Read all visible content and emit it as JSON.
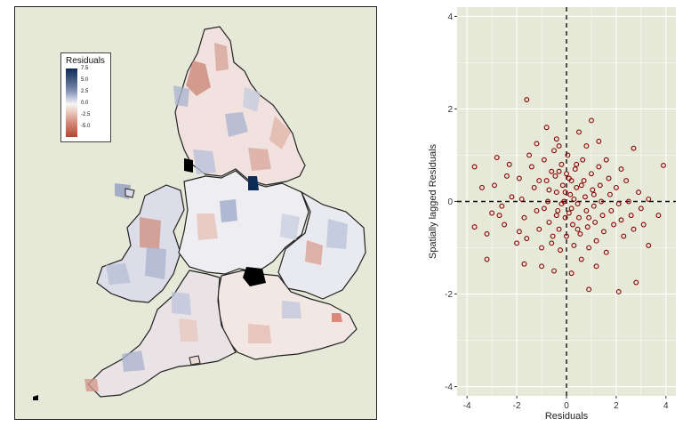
{
  "map": {
    "legend": {
      "title": "Residuals",
      "labels": [
        "7.5",
        "5.0",
        "2.5",
        "0.0",
        "-2.5",
        "-5.0"
      ],
      "colors": {
        "high": "#0b2a55",
        "mid": "#f6f4f2",
        "low": "#b54530"
      }
    }
  },
  "chart_data": {
    "type": "scatter",
    "xlabel": "Residuals",
    "ylabel": "Spatially lagged Residuals",
    "xlim": [
      -4.4,
      4.4
    ],
    "ylim": [
      -4.2,
      4.2
    ],
    "xticks": [
      "-4",
      "-2",
      "0",
      "2",
      "4"
    ],
    "yticks": [
      "-4",
      "-2",
      "0",
      "2",
      "4"
    ],
    "xtick_values": [
      -4,
      -2,
      0,
      2,
      4
    ],
    "ytick_values": [
      -4,
      -2,
      0,
      2,
      4
    ],
    "grid": true,
    "reference_lines": {
      "x": 0,
      "y": 0,
      "style": "dashed"
    },
    "point_color": "#8b0000",
    "points": [
      [
        -1.6,
        2.2
      ],
      [
        1.0,
        1.75
      ],
      [
        -0.8,
        1.6
      ],
      [
        -3.7,
        0.75
      ],
      [
        3.9,
        0.78
      ],
      [
        3.7,
        -0.3
      ],
      [
        3.3,
        -0.95
      ],
      [
        2.8,
        -1.75
      ],
      [
        2.1,
        -1.95
      ],
      [
        0.9,
        -1.9
      ],
      [
        -0.5,
        -1.5
      ],
      [
        -1.7,
        -1.35
      ],
      [
        -3.2,
        -1.25
      ],
      [
        -3.7,
        -0.55
      ],
      [
        -2.8,
        0.95
      ],
      [
        -2.3,
        0.8
      ],
      [
        1.3,
        1.3
      ],
      [
        0.5,
        1.5
      ],
      [
        -0.4,
        1.35
      ],
      [
        -1.2,
        1.25
      ],
      [
        2.7,
        1.15
      ],
      [
        -3.4,
        0.3
      ],
      [
        -2.9,
        0.35
      ],
      [
        -2.6,
        -0.1
      ],
      [
        -3.0,
        -0.25
      ],
      [
        -3.2,
        -0.7
      ],
      [
        -2.5,
        -0.5
      ],
      [
        -2.2,
        0.1
      ],
      [
        -1.9,
        0.5
      ],
      [
        -1.8,
        0.05
      ],
      [
        -1.7,
        -0.35
      ],
      [
        -1.6,
        -0.8
      ],
      [
        -1.4,
        0.75
      ],
      [
        -1.3,
        0.3
      ],
      [
        -1.2,
        -0.2
      ],
      [
        -1.1,
        -0.6
      ],
      [
        -1.0,
        -1.0
      ],
      [
        -0.9,
        0.9
      ],
      [
        -0.8,
        0.45
      ],
      [
        -0.75,
        0.0
      ],
      [
        -0.7,
        -0.45
      ],
      [
        -0.6,
        -0.9
      ],
      [
        -0.5,
        1.1
      ],
      [
        -0.45,
        0.55
      ],
      [
        -0.4,
        0.2
      ],
      [
        -0.35,
        -0.2
      ],
      [
        -0.3,
        -0.6
      ],
      [
        -0.25,
        -1.05
      ],
      [
        -0.2,
        0.8
      ],
      [
        -0.15,
        0.35
      ],
      [
        -0.1,
        0.0
      ],
      [
        -0.05,
        -0.35
      ],
      [
        0.0,
        -0.75
      ],
      [
        0.05,
        1.0
      ],
      [
        0.1,
        0.5
      ],
      [
        0.15,
        0.15
      ],
      [
        0.2,
        -0.15
      ],
      [
        0.25,
        -0.5
      ],
      [
        0.3,
        -0.95
      ],
      [
        0.35,
        0.7
      ],
      [
        0.4,
        0.3
      ],
      [
        0.45,
        -0.05
      ],
      [
        0.5,
        -0.35
      ],
      [
        0.55,
        -0.7
      ],
      [
        0.6,
        -1.25
      ],
      [
        0.65,
        0.9
      ],
      [
        0.7,
        0.45
      ],
      [
        0.75,
        0.1
      ],
      [
        0.8,
        -0.2
      ],
      [
        0.85,
        -0.55
      ],
      [
        0.9,
        -1.0
      ],
      [
        1.0,
        0.6
      ],
      [
        1.05,
        0.25
      ],
      [
        1.1,
        -0.1
      ],
      [
        1.15,
        -0.45
      ],
      [
        1.2,
        -0.85
      ],
      [
        1.3,
        0.75
      ],
      [
        1.35,
        0.35
      ],
      [
        1.4,
        0.0
      ],
      [
        1.45,
        -0.3
      ],
      [
        1.5,
        -0.65
      ],
      [
        1.6,
        -1.1
      ],
      [
        1.7,
        0.5
      ],
      [
        1.75,
        0.15
      ],
      [
        1.8,
        -0.2
      ],
      [
        1.9,
        -0.5
      ],
      [
        2.0,
        0.3
      ],
      [
        2.1,
        -0.05
      ],
      [
        2.2,
        -0.4
      ],
      [
        2.3,
        -0.75
      ],
      [
        2.4,
        0.45
      ],
      [
        2.5,
        0.0
      ],
      [
        2.6,
        -0.3
      ],
      [
        2.7,
        -0.6
      ],
      [
        2.9,
        0.2
      ],
      [
        3.0,
        -0.15
      ],
      [
        3.1,
        -0.5
      ],
      [
        3.3,
        0.05
      ],
      [
        -2.0,
        -0.9
      ],
      [
        -2.4,
        0.55
      ],
      [
        -1.5,
        1.0
      ],
      [
        -0.3,
        1.2
      ],
      [
        0.8,
        1.2
      ],
      [
        1.2,
        -1.4
      ],
      [
        -1.0,
        -1.4
      ],
      [
        0.2,
        -1.55
      ],
      [
        -0.6,
        0.65
      ],
      [
        0.4,
        0.8
      ],
      [
        1.6,
        0.9
      ],
      [
        -2.7,
        -0.3
      ],
      [
        -1.9,
        -0.65
      ],
      [
        2.2,
        0.7
      ],
      [
        -0.05,
        0.2
      ],
      [
        0.1,
        -0.25
      ],
      [
        -0.2,
        -0.05
      ],
      [
        0.3,
        0.05
      ],
      [
        -0.4,
        -0.3
      ],
      [
        0.6,
        0.35
      ],
      [
        -0.7,
        0.25
      ],
      [
        0.9,
        -0.35
      ],
      [
        -0.9,
        -0.15
      ],
      [
        1.1,
        0.15
      ],
      [
        -1.1,
        0.45
      ],
      [
        0.0,
        0.6
      ],
      [
        0.2,
        0.45
      ],
      [
        -0.3,
        0.65
      ],
      [
        0.45,
        -0.6
      ],
      [
        -0.55,
        -0.75
      ]
    ]
  }
}
